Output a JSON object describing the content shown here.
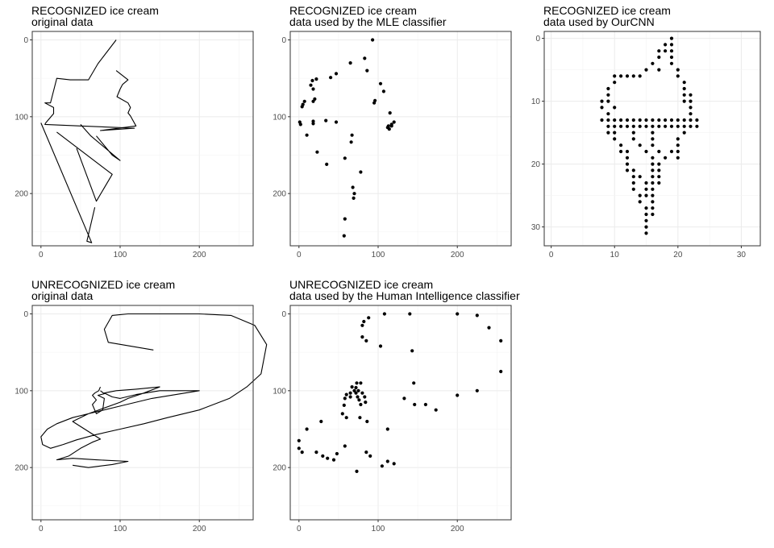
{
  "chart_data": [
    {
      "type": "line",
      "title": "RECOGNIZED ice cream",
      "subtitle": "original data",
      "xlim": [
        -11,
        268
      ],
      "ylim": [
        -11,
        268
      ],
      "y_reversed": true,
      "xticks": [
        0,
        100,
        200
      ],
      "yticks": [
        0,
        100,
        200
      ],
      "grid": true,
      "strokes": [
        [
          [
            95,
            0
          ],
          [
            72,
            31
          ],
          [
            60,
            52
          ],
          [
            37,
            52
          ],
          [
            20,
            50
          ],
          [
            17,
            62
          ],
          [
            12,
            82
          ],
          [
            5,
            82
          ],
          [
            16,
            88
          ],
          [
            16,
            96
          ],
          [
            6,
            108
          ],
          [
            5,
            110
          ],
          [
            50,
            112
          ],
          [
            118,
            115
          ],
          [
            75,
            118
          ],
          [
            120,
            112
          ],
          [
            113,
            99
          ],
          [
            110,
            95
          ],
          [
            113,
            88
          ],
          [
            110,
            82
          ],
          [
            96,
            74
          ],
          [
            100,
            64
          ],
          [
            103,
            58
          ],
          [
            110,
            52
          ],
          [
            95,
            40
          ]
        ],
        [
          [
            0,
            108
          ],
          [
            64,
            264
          ],
          [
            58,
            262
          ],
          [
            68,
            218
          ]
        ],
        [
          [
            20,
            120
          ],
          [
            90,
            175
          ],
          [
            70,
            210
          ],
          [
            45,
            141
          ]
        ],
        [
          [
            50,
            110
          ],
          [
            63,
            125
          ],
          [
            100,
            157
          ],
          [
            90,
            150
          ],
          [
            70,
            125
          ]
        ]
      ]
    },
    {
      "type": "scatter",
      "title": "RECOGNIZED ice cream",
      "subtitle": "data used by the MLE classifier",
      "xlim": [
        -11,
        268
      ],
      "ylim": [
        -11,
        268
      ],
      "y_reversed": true,
      "xticks": [
        0,
        100,
        200
      ],
      "yticks": [
        0,
        100,
        200
      ],
      "grid": true,
      "points": [
        [
          93,
          0
        ],
        [
          83,
          24
        ],
        [
          65,
          30
        ],
        [
          86,
          40
        ],
        [
          47,
          44
        ],
        [
          40,
          49
        ],
        [
          22,
          51
        ],
        [
          17,
          53
        ],
        [
          15,
          59
        ],
        [
          18,
          64
        ],
        [
          103,
          57
        ],
        [
          107,
          67
        ],
        [
          96,
          79
        ],
        [
          95,
          82
        ],
        [
          20,
          77
        ],
        [
          18,
          80
        ],
        [
          7,
          80
        ],
        [
          4,
          87
        ],
        [
          5,
          84
        ],
        [
          115,
          95
        ],
        [
          1,
          107
        ],
        [
          2,
          110
        ],
        [
          18,
          106
        ],
        [
          18,
          109
        ],
        [
          34,
          105
        ],
        [
          47,
          107
        ],
        [
          117,
          110
        ],
        [
          117,
          112
        ],
        [
          113,
          112
        ],
        [
          114,
          116
        ],
        [
          112,
          114
        ],
        [
          120,
          107
        ],
        [
          10,
          124
        ],
        [
          67,
          124
        ],
        [
          66,
          133
        ],
        [
          23,
          146
        ],
        [
          58,
          154
        ],
        [
          35,
          162
        ],
        [
          78,
          172
        ],
        [
          68,
          192
        ],
        [
          70,
          200
        ],
        [
          69,
          206
        ],
        [
          58,
          233
        ],
        [
          57,
          255
        ]
      ]
    },
    {
      "type": "scatter",
      "title": "RECOGNIZED ice cream",
      "subtitle": "data used by OurCNN",
      "xlim": [
        -1.1,
        33
      ],
      "ylim": [
        -1.1,
        33
      ],
      "y_reversed": true,
      "xticks": [
        0,
        10,
        20,
        30
      ],
      "yticks": [
        0,
        10,
        20,
        30
      ],
      "grid": true,
      "points": [
        [
          19,
          0
        ],
        [
          18,
          1
        ],
        [
          19,
          1
        ],
        [
          17,
          2
        ],
        [
          18,
          2
        ],
        [
          19,
          2
        ],
        [
          17,
          3
        ],
        [
          19,
          3
        ],
        [
          16,
          4
        ],
        [
          19,
          4
        ],
        [
          15,
          5
        ],
        [
          17,
          5
        ],
        [
          20,
          5
        ],
        [
          10,
          6
        ],
        [
          11,
          6
        ],
        [
          12,
          6
        ],
        [
          13,
          6
        ],
        [
          14,
          6
        ],
        [
          20,
          6
        ],
        [
          10,
          7
        ],
        [
          21,
          7
        ],
        [
          9,
          8
        ],
        [
          21,
          8
        ],
        [
          9,
          9
        ],
        [
          21,
          9
        ],
        [
          22,
          9
        ],
        [
          8,
          10
        ],
        [
          9,
          10
        ],
        [
          21,
          10
        ],
        [
          22,
          10
        ],
        [
          8,
          11
        ],
        [
          10,
          11
        ],
        [
          22,
          11
        ],
        [
          9,
          12
        ],
        [
          22,
          12
        ],
        [
          23,
          13
        ],
        [
          8,
          13
        ],
        [
          9,
          13
        ],
        [
          10,
          13
        ],
        [
          11,
          13
        ],
        [
          12,
          13
        ],
        [
          13,
          13
        ],
        [
          14,
          13
        ],
        [
          15,
          13
        ],
        [
          16,
          13
        ],
        [
          17,
          13
        ],
        [
          18,
          13
        ],
        [
          19,
          13
        ],
        [
          20,
          13
        ],
        [
          21,
          13
        ],
        [
          22,
          13
        ],
        [
          9,
          14
        ],
        [
          10,
          14
        ],
        [
          11,
          14
        ],
        [
          12,
          14
        ],
        [
          13,
          14
        ],
        [
          14,
          14
        ],
        [
          15,
          14
        ],
        [
          16,
          14
        ],
        [
          17,
          14
        ],
        [
          18,
          14
        ],
        [
          19,
          14
        ],
        [
          20,
          14
        ],
        [
          21,
          14
        ],
        [
          22,
          14
        ],
        [
          23,
          14
        ],
        [
          9,
          15
        ],
        [
          10,
          15
        ],
        [
          13,
          15
        ],
        [
          16,
          15
        ],
        [
          21,
          15
        ],
        [
          10,
          16
        ],
        [
          13,
          16
        ],
        [
          16,
          16
        ],
        [
          20,
          16
        ],
        [
          11,
          17
        ],
        [
          14,
          17
        ],
        [
          16,
          17
        ],
        [
          20,
          17
        ],
        [
          11,
          18
        ],
        [
          12,
          18
        ],
        [
          15,
          18
        ],
        [
          17,
          18
        ],
        [
          19,
          18
        ],
        [
          20,
          18
        ],
        [
          12,
          19
        ],
        [
          16,
          19
        ],
        [
          18,
          19
        ],
        [
          20,
          19
        ],
        [
          12,
          20
        ],
        [
          16,
          20
        ],
        [
          17,
          20
        ],
        [
          12,
          21
        ],
        [
          13,
          21
        ],
        [
          16,
          21
        ],
        [
          17,
          21
        ],
        [
          13,
          22
        ],
        [
          14,
          22
        ],
        [
          16,
          22
        ],
        [
          17,
          22
        ],
        [
          13,
          23
        ],
        [
          15,
          23
        ],
        [
          16,
          23
        ],
        [
          17,
          23
        ],
        [
          13,
          24
        ],
        [
          15,
          24
        ],
        [
          16,
          24
        ],
        [
          14,
          25
        ],
        [
          15,
          25
        ],
        [
          16,
          25
        ],
        [
          14,
          26
        ],
        [
          16,
          26
        ],
        [
          15,
          27
        ],
        [
          16,
          27
        ],
        [
          15,
          28
        ],
        [
          16,
          28
        ],
        [
          15,
          29
        ],
        [
          15,
          30
        ],
        [
          15,
          31
        ]
      ]
    },
    {
      "type": "line",
      "title": "UNRECOGNIZED ice cream",
      "subtitle": "original data",
      "xlim": [
        -11,
        268
      ],
      "ylim": [
        -11,
        268
      ],
      "y_reversed": true,
      "xticks": [
        0,
        100,
        200
      ],
      "yticks": [
        0,
        100,
        200
      ],
      "grid": true,
      "strokes": [
        [
          [
            142,
            47
          ],
          [
            85,
            37
          ],
          [
            80,
            20
          ],
          [
            90,
            2
          ],
          [
            110,
            0
          ],
          [
            140,
            0
          ],
          [
            200,
            0
          ],
          [
            240,
            2
          ],
          [
            270,
            15
          ],
          [
            285,
            40
          ],
          [
            278,
            78
          ],
          [
            260,
            95
          ],
          [
            238,
            110
          ],
          [
            200,
            125
          ],
          [
            160,
            135
          ],
          [
            130,
            143
          ],
          [
            100,
            150
          ],
          [
            70,
            157
          ],
          [
            45,
            164
          ],
          [
            28,
            170
          ],
          [
            12,
            175
          ],
          [
            2,
            170
          ],
          [
            0,
            160
          ],
          [
            8,
            150
          ],
          [
            20,
            143
          ],
          [
            40,
            135
          ],
          [
            60,
            130
          ],
          [
            100,
            120
          ],
          [
            140,
            110
          ],
          [
            200,
            100
          ],
          [
            150,
            100
          ],
          [
            120,
            105
          ],
          [
            100,
            110
          ],
          [
            90,
            108
          ],
          [
            80,
            103
          ],
          [
            95,
            100
          ],
          [
            120,
            98
          ],
          [
            150,
            95
          ],
          [
            130,
            103
          ],
          [
            110,
            110
          ],
          [
            100,
            115
          ],
          [
            60,
            130
          ],
          [
            40,
            140
          ],
          [
            75,
            163
          ],
          [
            65,
            167
          ],
          [
            50,
            175
          ],
          [
            35,
            185
          ],
          [
            20,
            190
          ],
          [
            40,
            188
          ],
          [
            70,
            190
          ],
          [
            110,
            192
          ],
          [
            90,
            196
          ],
          [
            60,
            200
          ],
          [
            40,
            197
          ]
        ],
        [
          [
            75,
            95
          ],
          [
            73,
            100
          ],
          [
            68,
            103
          ],
          [
            65,
            106
          ],
          [
            70,
            112
          ],
          [
            65,
            118
          ],
          [
            70,
            130
          ],
          [
            78,
            125
          ],
          [
            80,
            110
          ],
          [
            72,
            106
          ],
          [
            80,
            104
          ],
          [
            75,
            100
          ]
        ]
      ]
    },
    {
      "type": "scatter",
      "title": "UNRECOGNIZED ice cream",
      "subtitle": "data used by the Human Intelligence classifier",
      "xlim": [
        -11,
        268
      ],
      "ylim": [
        -11,
        268
      ],
      "y_reversed": true,
      "xticks": [
        0,
        100,
        200
      ],
      "yticks": [
        0,
        100,
        200
      ],
      "grid": true,
      "points": [
        [
          108,
          0
        ],
        [
          140,
          0
        ],
        [
          200,
          0
        ],
        [
          225,
          2
        ],
        [
          240,
          18
        ],
        [
          255,
          35
        ],
        [
          255,
          75
        ],
        [
          88,
          5
        ],
        [
          82,
          10
        ],
        [
          80,
          15
        ],
        [
          80,
          30
        ],
        [
          85,
          35
        ],
        [
          103,
          42
        ],
        [
          143,
          48
        ],
        [
          73,
          90
        ],
        [
          78,
          90
        ],
        [
          67,
          95
        ],
        [
          72,
          96
        ],
        [
          70,
          100
        ],
        [
          75,
          100
        ],
        [
          65,
          103
        ],
        [
          72,
          103
        ],
        [
          60,
          105
        ],
        [
          65,
          108
        ],
        [
          80,
          103
        ],
        [
          83,
          108
        ],
        [
          84,
          115
        ],
        [
          74,
          108
        ],
        [
          76,
          112
        ],
        [
          78,
          118
        ],
        [
          58,
          110
        ],
        [
          57,
          119
        ],
        [
          55,
          130
        ],
        [
          60,
          135
        ],
        [
          77,
          135
        ],
        [
          86,
          140
        ],
        [
          145,
          90
        ],
        [
          133,
          110
        ],
        [
          146,
          118
        ],
        [
          160,
          118
        ],
        [
          173,
          125
        ],
        [
          200,
          106
        ],
        [
          225,
          100
        ],
        [
          28,
          140
        ],
        [
          10,
          150
        ],
        [
          0,
          165
        ],
        [
          0,
          175
        ],
        [
          4,
          180
        ],
        [
          22,
          180
        ],
        [
          30,
          185
        ],
        [
          36,
          188
        ],
        [
          44,
          190
        ],
        [
          58,
          172
        ],
        [
          48,
          182
        ],
        [
          112,
          150
        ],
        [
          85,
          180
        ],
        [
          90,
          185
        ],
        [
          73,
          205
        ],
        [
          105,
          198
        ],
        [
          112,
          192
        ],
        [
          120,
          195
        ]
      ]
    }
  ]
}
